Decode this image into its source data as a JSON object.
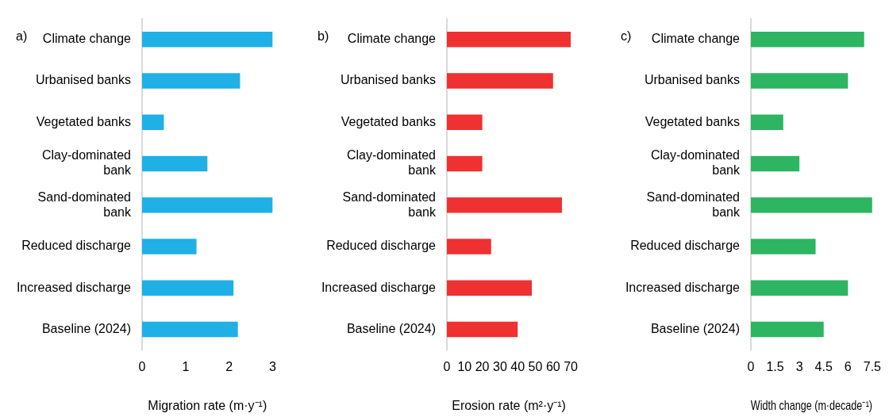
{
  "chart_data": [
    {
      "type": "bar",
      "orientation": "horizontal",
      "title": "a)",
      "xlabel": "Migration rate (m·y⁻¹)",
      "categories": [
        "Climate change",
        "Urbanised banks",
        "Vegetated banks",
        "Clay-dominated bank",
        "Sand-dominated bank",
        "Reduced discharge",
        "Increased discharge",
        "Baseline (2024)"
      ],
      "values": [
        3,
        2.25,
        0.5,
        1.5,
        3,
        1.25,
        2.1,
        2.2
      ],
      "color": "#1fb0e6",
      "xlim": [
        0,
        3
      ],
      "xticks": [
        0,
        1,
        2,
        3
      ]
    },
    {
      "type": "bar",
      "orientation": "horizontal",
      "title": "b)",
      "xlabel": "Erosion rate (m²·y⁻¹)",
      "categories": [
        "Climate change",
        "Urbanised banks",
        "Vegetated banks",
        "Clay-dominated bank",
        "Sand-dominated bank",
        "Reduced discharge",
        "Increased discharge",
        "Baseline (2024)"
      ],
      "values": [
        70,
        60,
        20,
        20,
        65,
        25,
        48,
        40
      ],
      "color": "#ef3131",
      "xlim": [
        0,
        70
      ],
      "xticks": [
        0,
        10,
        20,
        30,
        40,
        50,
        60,
        70
      ]
    },
    {
      "type": "bar",
      "orientation": "horizontal",
      "title": "c)",
      "xlabel": "Width change (m·decade⁻¹)",
      "categories": [
        "Climate change",
        "Urbanised banks",
        "Vegetated banks",
        "Clay-dominated bank",
        "Sand-dominated bank",
        "Reduced discharge",
        "Increased discharge",
        "Baseline (2024)"
      ],
      "values": [
        7,
        6,
        2,
        3,
        7.5,
        4,
        6,
        4.5
      ],
      "color": "#2db562",
      "xlim": [
        0,
        7.5
      ],
      "xticks": [
        0,
        1.5,
        3,
        4.5,
        6,
        7.5
      ]
    }
  ]
}
